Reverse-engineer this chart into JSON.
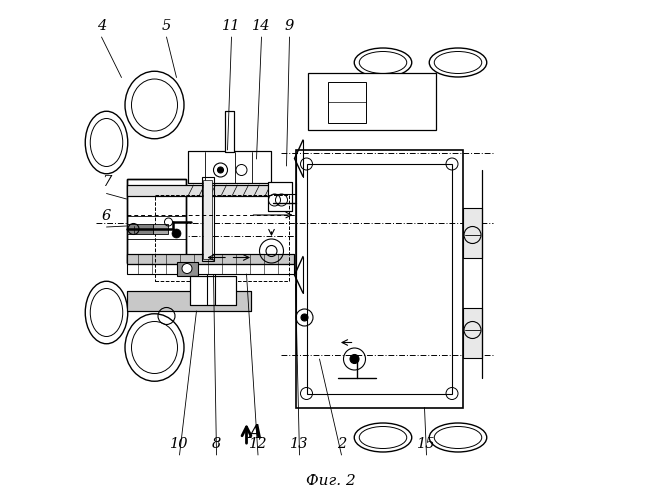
{
  "title": "Фиг. 2",
  "line_color": "#000000",
  "bg_color": "#ffffff"
}
